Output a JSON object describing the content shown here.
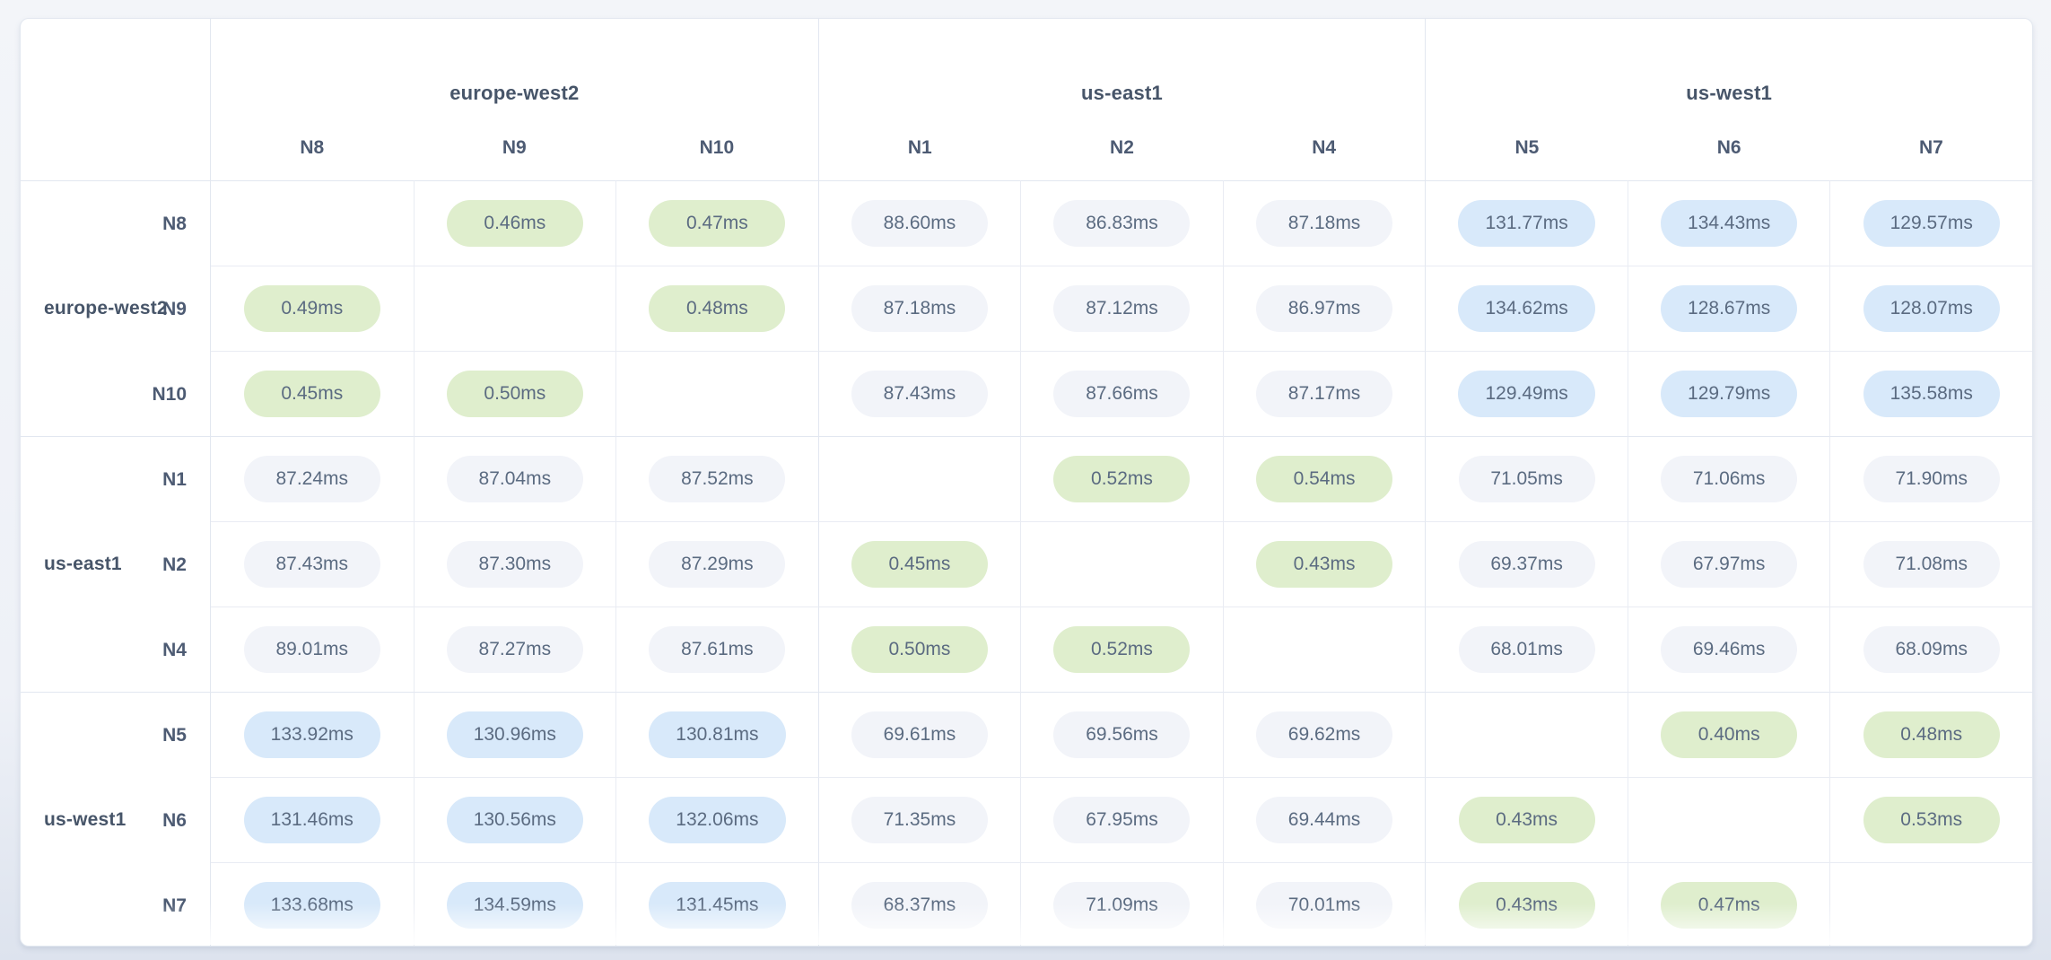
{
  "colors": {
    "pill_fast_bg": "#dfeecd",
    "pill_mid_bg": "#f2f4f9",
    "pill_slow_bg": "#d8e9fa",
    "pill_text": "#5b6b81",
    "heading_text": "#475569",
    "grid_line": "#e9ecf3",
    "group_line": "#e2e7f0",
    "card_bg": "#ffffff",
    "page_bg_top": "#f3f5f9",
    "page_bg_bottom": "#dde3ee"
  },
  "matrix": {
    "unit": "ms",
    "regions": [
      {
        "name": "europe-west2",
        "nodes": [
          "N8",
          "N9",
          "N10"
        ]
      },
      {
        "name": "us-east1",
        "nodes": [
          "N1",
          "N2",
          "N4"
        ]
      },
      {
        "name": "us-west1",
        "nodes": [
          "N5",
          "N6",
          "N7"
        ]
      }
    ],
    "rows": [
      {
        "node": "N8",
        "region": "europe-west2",
        "cells": [
          null,
          {
            "value": "0.46ms",
            "level": "fast"
          },
          {
            "value": "0.47ms",
            "level": "fast"
          },
          {
            "value": "88.60ms",
            "level": "mid"
          },
          {
            "value": "86.83ms",
            "level": "mid"
          },
          {
            "value": "87.18ms",
            "level": "mid"
          },
          {
            "value": "131.77ms",
            "level": "slow"
          },
          {
            "value": "134.43ms",
            "level": "slow"
          },
          {
            "value": "129.57ms",
            "level": "slow"
          }
        ]
      },
      {
        "node": "N9",
        "region": "europe-west2",
        "cells": [
          {
            "value": "0.49ms",
            "level": "fast"
          },
          null,
          {
            "value": "0.48ms",
            "level": "fast"
          },
          {
            "value": "87.18ms",
            "level": "mid"
          },
          {
            "value": "87.12ms",
            "level": "mid"
          },
          {
            "value": "86.97ms",
            "level": "mid"
          },
          {
            "value": "134.62ms",
            "level": "slow"
          },
          {
            "value": "128.67ms",
            "level": "slow"
          },
          {
            "value": "128.07ms",
            "level": "slow"
          }
        ]
      },
      {
        "node": "N10",
        "region": "europe-west2",
        "cells": [
          {
            "value": "0.45ms",
            "level": "fast"
          },
          {
            "value": "0.50ms",
            "level": "fast"
          },
          null,
          {
            "value": "87.43ms",
            "level": "mid"
          },
          {
            "value": "87.66ms",
            "level": "mid"
          },
          {
            "value": "87.17ms",
            "level": "mid"
          },
          {
            "value": "129.49ms",
            "level": "slow"
          },
          {
            "value": "129.79ms",
            "level": "slow"
          },
          {
            "value": "135.58ms",
            "level": "slow"
          }
        ]
      },
      {
        "node": "N1",
        "region": "us-east1",
        "cells": [
          {
            "value": "87.24ms",
            "level": "mid"
          },
          {
            "value": "87.04ms",
            "level": "mid"
          },
          {
            "value": "87.52ms",
            "level": "mid"
          },
          null,
          {
            "value": "0.52ms",
            "level": "fast"
          },
          {
            "value": "0.54ms",
            "level": "fast"
          },
          {
            "value": "71.05ms",
            "level": "mid"
          },
          {
            "value": "71.06ms",
            "level": "mid"
          },
          {
            "value": "71.90ms",
            "level": "mid"
          }
        ]
      },
      {
        "node": "N2",
        "region": "us-east1",
        "cells": [
          {
            "value": "87.43ms",
            "level": "mid"
          },
          {
            "value": "87.30ms",
            "level": "mid"
          },
          {
            "value": "87.29ms",
            "level": "mid"
          },
          {
            "value": "0.45ms",
            "level": "fast"
          },
          null,
          {
            "value": "0.43ms",
            "level": "fast"
          },
          {
            "value": "69.37ms",
            "level": "mid"
          },
          {
            "value": "67.97ms",
            "level": "mid"
          },
          {
            "value": "71.08ms",
            "level": "mid"
          }
        ]
      },
      {
        "node": "N4",
        "region": "us-east1",
        "cells": [
          {
            "value": "89.01ms",
            "level": "mid"
          },
          {
            "value": "87.27ms",
            "level": "mid"
          },
          {
            "value": "87.61ms",
            "level": "mid"
          },
          {
            "value": "0.50ms",
            "level": "fast"
          },
          {
            "value": "0.52ms",
            "level": "fast"
          },
          null,
          {
            "value": "68.01ms",
            "level": "mid"
          },
          {
            "value": "69.46ms",
            "level": "mid"
          },
          {
            "value": "68.09ms",
            "level": "mid"
          }
        ]
      },
      {
        "node": "N5",
        "region": "us-west1",
        "cells": [
          {
            "value": "133.92ms",
            "level": "slow"
          },
          {
            "value": "130.96ms",
            "level": "slow"
          },
          {
            "value": "130.81ms",
            "level": "slow"
          },
          {
            "value": "69.61ms",
            "level": "mid"
          },
          {
            "value": "69.56ms",
            "level": "mid"
          },
          {
            "value": "69.62ms",
            "level": "mid"
          },
          null,
          {
            "value": "0.40ms",
            "level": "fast"
          },
          {
            "value": "0.48ms",
            "level": "fast"
          }
        ]
      },
      {
        "node": "N6",
        "region": "us-west1",
        "cells": [
          {
            "value": "131.46ms",
            "level": "slow"
          },
          {
            "value": "130.56ms",
            "level": "slow"
          },
          {
            "value": "132.06ms",
            "level": "slow"
          },
          {
            "value": "71.35ms",
            "level": "mid"
          },
          {
            "value": "67.95ms",
            "level": "mid"
          },
          {
            "value": "69.44ms",
            "level": "mid"
          },
          {
            "value": "0.43ms",
            "level": "fast"
          },
          null,
          {
            "value": "0.53ms",
            "level": "fast"
          }
        ]
      },
      {
        "node": "N7",
        "region": "us-west1",
        "cells": [
          {
            "value": "133.68ms",
            "level": "slow"
          },
          {
            "value": "134.59ms",
            "level": "slow"
          },
          {
            "value": "131.45ms",
            "level": "slow"
          },
          {
            "value": "68.37ms",
            "level": "mid"
          },
          {
            "value": "71.09ms",
            "level": "mid"
          },
          {
            "value": "70.01ms",
            "level": "mid"
          },
          {
            "value": "0.43ms",
            "level": "fast"
          },
          {
            "value": "0.47ms",
            "level": "fast"
          },
          null
        ]
      }
    ]
  }
}
